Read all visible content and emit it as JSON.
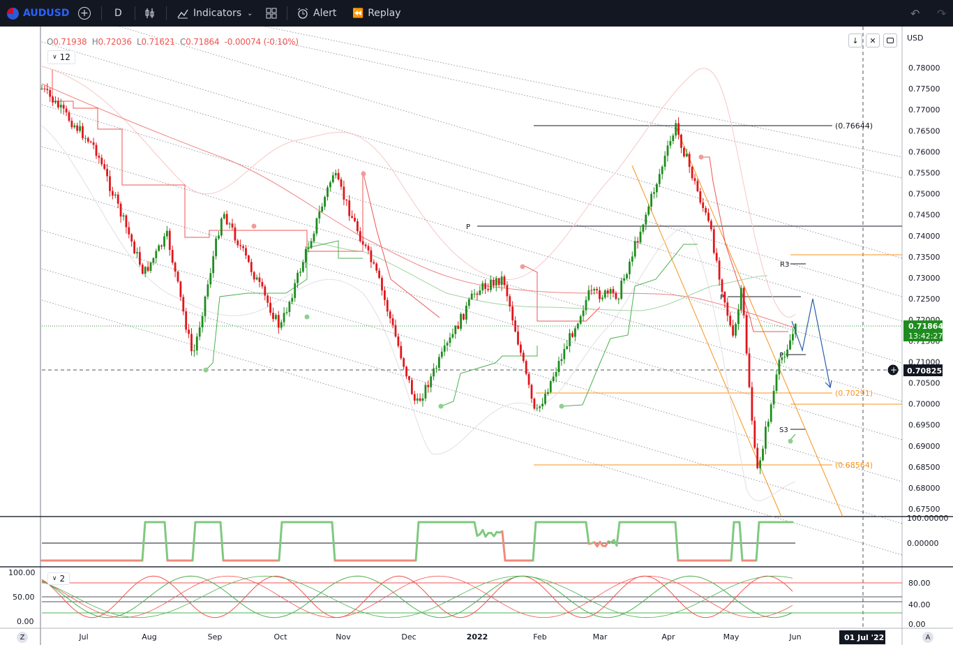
{
  "toolbar": {
    "symbol": "AUDUSD",
    "interval": "D",
    "indicators_label": "Indicators",
    "alert_label": "Alert",
    "replay_label": "Replay"
  },
  "legend": {
    "open_key": "O",
    "open": "0.71938",
    "high_key": "H",
    "high": "0.72036",
    "low_key": "L",
    "low": "0.71621",
    "close_key": "C",
    "close": "0.71864",
    "change": "-0.00074 (-0.10%)",
    "indicator_count": "12"
  },
  "price_axis": {
    "currency": "USD",
    "ticks": [
      "0.78000",
      "0.77500",
      "0.77000",
      "0.76500",
      "0.76000",
      "0.75500",
      "0.75000",
      "0.74500",
      "0.74000",
      "0.73500",
      "0.73000",
      "0.72500",
      "0.72000",
      "0.71500",
      "0.71000",
      "0.70500",
      "0.70000",
      "0.69500",
      "0.69000",
      "0.68500",
      "0.68000",
      "0.67500"
    ],
    "last_price": "0.71864",
    "countdown": "13:42:27",
    "crosshair_price": "0.70825"
  },
  "time_axis": {
    "labels": [
      "Jul",
      "Aug",
      "Sep",
      "Oct",
      "Nov",
      "Dec",
      "2022",
      "Feb",
      "Mar",
      "Apr",
      "May",
      "Jun"
    ],
    "crosshair_date": "01 Jul '22",
    "left_button": "Z",
    "right_button": "A"
  },
  "annotations": {
    "fib_high": "(0.76644)",
    "fib_mid": "(0.70291)",
    "fib_low": "(0.68564)",
    "pivot_p1": "P",
    "pivot_p2": "P",
    "pivot_r3": "R3",
    "pivot_s3": "S3",
    "pivot_p3": "P"
  },
  "osc1": {
    "top_tick": "100.00000",
    "zero_tick": "0.00000"
  },
  "osc2": {
    "indicator_count": "2",
    "left_ticks": [
      "100.00",
      "50.00",
      "0.00"
    ],
    "right_ticks": [
      "80.00",
      "40.00",
      "0.00"
    ]
  },
  "colors": {
    "bull": "#089981",
    "bear": "#f23645",
    "up_candle": "#1e8c1e",
    "down_candle": "#e0161b",
    "accent": "#2962ff"
  },
  "chart_data": {
    "type": "candlestick",
    "symbol": "AUDUSD",
    "ylim": [
      0.675,
      0.785
    ],
    "x_range": [
      "2021-06-10",
      "2022-07-05"
    ],
    "last_close": 0.71864,
    "swing_points": [
      {
        "date": "2021-06-10",
        "price": 0.775
      },
      {
        "date": "2021-07-05",
        "price": 0.761
      },
      {
        "date": "2021-07-28",
        "price": 0.731
      },
      {
        "date": "2021-08-08",
        "price": 0.74
      },
      {
        "date": "2021-08-20",
        "price": 0.711
      },
      {
        "date": "2021-09-03",
        "price": 0.746
      },
      {
        "date": "2021-09-30",
        "price": 0.718
      },
      {
        "date": "2021-10-25",
        "price": 0.755
      },
      {
        "date": "2021-11-15",
        "price": 0.73
      },
      {
        "date": "2021-12-03",
        "price": 0.6995
      },
      {
        "date": "2021-12-31",
        "price": 0.727
      },
      {
        "date": "2022-01-13",
        "price": 0.73
      },
      {
        "date": "2022-01-28",
        "price": 0.697
      },
      {
        "date": "2022-02-22",
        "price": 0.726
      },
      {
        "date": "2022-03-08",
        "price": 0.726
      },
      {
        "date": "2022-04-04",
        "price": 0.766
      },
      {
        "date": "2022-04-20",
        "price": 0.742
      },
      {
        "date": "2022-05-01",
        "price": 0.715
      },
      {
        "date": "2022-05-05",
        "price": 0.727
      },
      {
        "date": "2022-05-12",
        "price": 0.683
      },
      {
        "date": "2022-05-23",
        "price": 0.71
      },
      {
        "date": "2022-05-31",
        "price": 0.7186
      }
    ]
  }
}
